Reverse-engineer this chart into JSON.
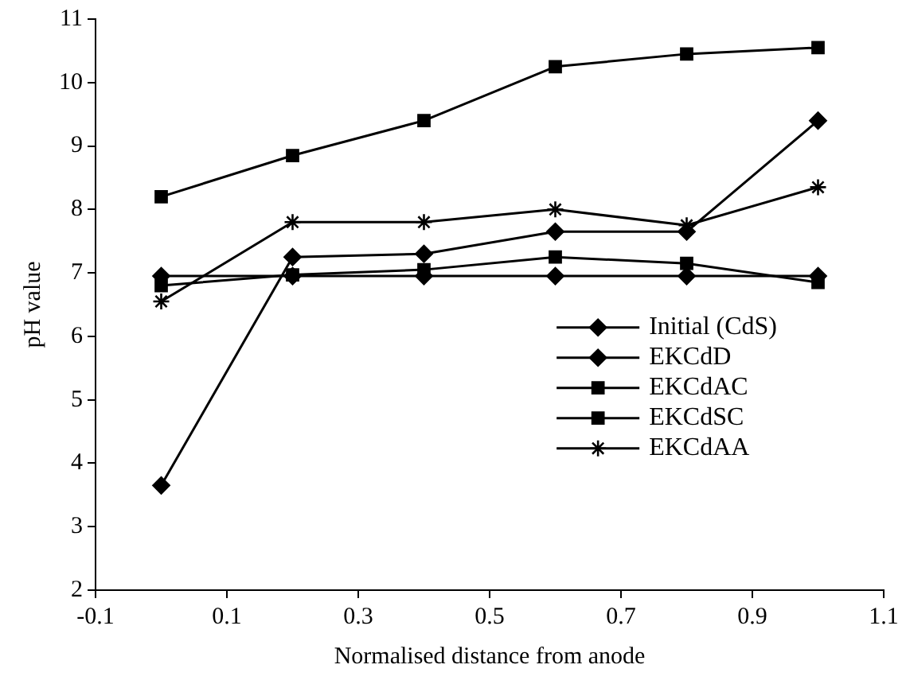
{
  "chart_data": {
    "type": "line",
    "xlabel": "Normalised distance from anode",
    "ylabel": "pH value",
    "x": [
      0,
      0.2,
      0.4,
      0.6,
      0.8,
      1.0
    ],
    "xlim": [
      -0.1,
      1.1
    ],
    "xticks": [
      -0.1,
      0.1,
      0.3,
      0.5,
      0.7,
      0.9,
      1.1
    ],
    "ylim": [
      2,
      11
    ],
    "yticks": [
      2,
      3,
      4,
      5,
      6,
      7,
      8,
      9,
      10,
      11
    ],
    "grid": false,
    "legend": "right",
    "line_style": "solid",
    "series": [
      {
        "name": "Initial (CdS)",
        "color": "#000000",
        "marker": "diamond",
        "values": [
          6.95,
          6.95,
          6.95,
          6.95,
          6.95,
          6.95
        ]
      },
      {
        "name": "EKCdD",
        "color": "#000000",
        "marker": "diamond",
        "values": [
          3.65,
          7.25,
          7.3,
          7.65,
          7.65,
          9.4
        ]
      },
      {
        "name": "EKCdAC",
        "color": "#000000",
        "marker": "square",
        "values": [
          6.8,
          6.97,
          7.05,
          7.25,
          7.15,
          6.85
        ]
      },
      {
        "name": "EKCdSC",
        "color": "#000000",
        "marker": "square",
        "values": [
          8.2,
          8.85,
          9.4,
          10.25,
          10.45,
          10.55
        ]
      },
      {
        "name": "EKCdAA",
        "color": "#000000",
        "marker": "cross",
        "values": [
          6.55,
          7.8,
          7.8,
          8.0,
          7.75,
          8.35
        ]
      }
    ]
  }
}
